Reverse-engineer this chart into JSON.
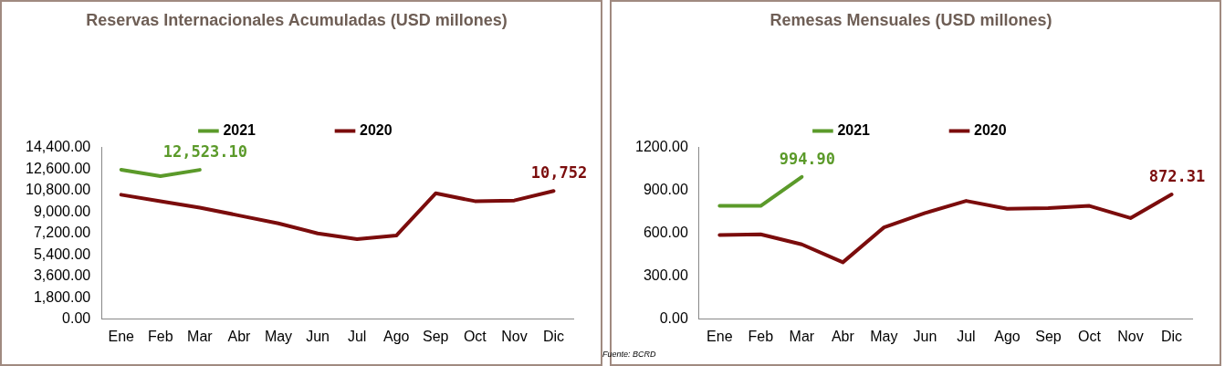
{
  "chart_data": [
    {
      "type": "line",
      "title": "Reservas Internacionales Acumuladas (USD millones)",
      "categories": [
        "Ene",
        "Feb",
        "Mar",
        "Abr",
        "May",
        "Jun",
        "Jul",
        "Ago",
        "Sep",
        "Oct",
        "Nov",
        "Dic"
      ],
      "series": [
        {
          "name": "2021",
          "color": "#5b9a2a",
          "values": [
            12540,
            12000,
            12523.1,
            null,
            null,
            null,
            null,
            null,
            null,
            null,
            null,
            null
          ],
          "value_labels": [
            null,
            null,
            "12,523.10",
            null,
            null,
            null,
            null,
            null,
            null,
            null,
            null,
            null
          ]
        },
        {
          "name": "2020",
          "color": "#7b0c0c",
          "values": [
            10440,
            9900,
            9360,
            8700,
            8040,
            7200,
            6720,
            7020,
            10560,
            9900,
            9960,
            10752
          ],
          "value_labels": [
            null,
            null,
            null,
            null,
            null,
            null,
            null,
            null,
            null,
            null,
            null,
            "10,752"
          ]
        }
      ],
      "ylim": [
        0,
        14400
      ],
      "yticks": [
        {
          "value": 0,
          "label": "0.00"
        },
        {
          "value": 1800,
          "label": "1,800.00"
        },
        {
          "value": 3600,
          "label": "3,600.00"
        },
        {
          "value": 5400,
          "label": "5,400.00"
        },
        {
          "value": 7200,
          "label": "7,200.00"
        },
        {
          "value": 9000,
          "label": "9,000.00"
        },
        {
          "value": 10800,
          "label": "10,800.00"
        },
        {
          "value": 12600,
          "label": "12,600.00"
        },
        {
          "value": 14400,
          "label": "14,400.00"
        }
      ],
      "grid": false,
      "legend": "top",
      "marker": "none",
      "line_style": "solid"
    },
    {
      "type": "line",
      "title": "Remesas Mensuales (USD millones)",
      "categories": [
        "Ene",
        "Feb",
        "Mar",
        "Abr",
        "May",
        "Jun",
        "Jul",
        "Ago",
        "Sep",
        "Oct",
        "Nov",
        "Dic"
      ],
      "series": [
        {
          "name": "2021",
          "color": "#5b9a2a",
          "values": [
            792,
            792,
            994.9,
            null,
            null,
            null,
            null,
            null,
            null,
            null,
            null,
            null
          ],
          "value_labels": [
            null,
            null,
            "994.90",
            null,
            null,
            null,
            null,
            null,
            null,
            null,
            null,
            null
          ]
        },
        {
          "name": "2020",
          "color": "#7b0c0c",
          "values": [
            588,
            593,
            523,
            398,
            642,
            742,
            827,
            772,
            777,
            792,
            707,
            872.31
          ],
          "value_labels": [
            null,
            null,
            null,
            null,
            null,
            null,
            null,
            null,
            null,
            null,
            null,
            "872.31"
          ]
        }
      ],
      "ylim": [
        0,
        1200
      ],
      "yticks": [
        {
          "value": 0,
          "label": "0.00"
        },
        {
          "value": 300,
          "label": "300.00"
        },
        {
          "value": 600,
          "label": "600.00"
        },
        {
          "value": 900,
          "label": "900.00"
        },
        {
          "value": 1200,
          "label": "1200.00"
        }
      ],
      "grid": false,
      "legend": "top",
      "marker": "none",
      "line_style": "solid",
      "annotations": [
        "Fuente: BCRD"
      ]
    }
  ]
}
